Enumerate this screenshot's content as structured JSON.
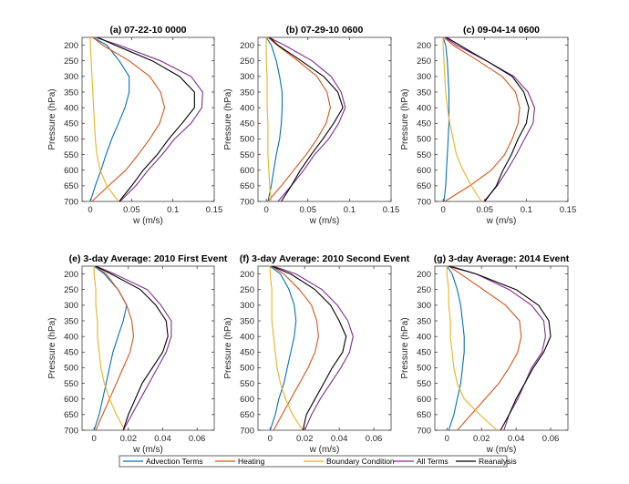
{
  "chart_data": {
    "type": "line",
    "series_names": [
      "Advection Terms",
      "Heating",
      "Boundary Condition",
      "All Terms",
      "Reanalysis"
    ],
    "colors": {
      "Advection Terms": "#0072bd",
      "Heating": "#d95319",
      "Boundary Condition": "#edb120",
      "All Terms": "#7e2f8e",
      "Reanalysis": "#000000"
    },
    "ylabel": "Pressure (hPa)",
    "xlabel": "w (m/s)",
    "y_ticks": [
      200,
      250,
      300,
      350,
      400,
      450,
      500,
      550,
      600,
      650,
      700
    ],
    "levels": [
      175,
      200,
      250,
      300,
      350,
      400,
      450,
      500,
      550,
      600,
      650,
      700
    ],
    "panels": [
      {
        "title": "(a) 07-22-10 0000",
        "xlim": [
          -0.01,
          0.15
        ],
        "x_ticks": [
          0,
          0.05,
          0.1,
          0.15
        ],
        "x_tick_labels": [
          "0",
          "0.05",
          "0.1",
          "0.15"
        ],
        "series": [
          {
            "name": "Advection Terms",
            "values": [
              0.003,
              0.02,
              0.035,
              0.047,
              0.047,
              0.042,
              0.034,
              0.026,
              0.019,
              0.013,
              0.006,
              0.0
            ]
          },
          {
            "name": "Heating",
            "values": [
              0.003,
              0.015,
              0.047,
              0.072,
              0.085,
              0.09,
              0.084,
              0.072,
              0.058,
              0.043,
              0.022,
              0.002
            ]
          },
          {
            "name": "Boundary Condition",
            "values": [
              0.0,
              0.0,
              0.001,
              0.002,
              0.003,
              0.004,
              0.005,
              0.006,
              0.008,
              0.012,
              0.02,
              0.034
            ]
          },
          {
            "name": "All Terms",
            "values": [
              0.006,
              0.035,
              0.085,
              0.122,
              0.136,
              0.135,
              0.122,
              0.102,
              0.087,
              0.07,
              0.055,
              0.036
            ]
          },
          {
            "name": "Reanalysis",
            "values": [
              0.009,
              0.03,
              0.075,
              0.108,
              0.126,
              0.126,
              0.111,
              0.095,
              0.081,
              0.064,
              0.05,
              0.035
            ]
          }
        ]
      },
      {
        "title": "(b) 07-29-10 0600",
        "xlim": [
          -0.01,
          0.15
        ],
        "x_ticks": [
          0,
          0.05,
          0.1,
          0.15
        ],
        "x_tick_labels": [
          "0",
          "0.05",
          "0.1",
          "0.15"
        ],
        "series": [
          {
            "name": "Advection Terms",
            "values": [
              0.0,
              0.006,
              0.012,
              0.016,
              0.019,
              0.019,
              0.018,
              0.016,
              0.012,
              0.009,
              0.006,
              0.002
            ]
          },
          {
            "name": "Heating",
            "values": [
              0.002,
              0.013,
              0.038,
              0.061,
              0.073,
              0.077,
              0.072,
              0.061,
              0.048,
              0.033,
              0.018,
              0.002
            ]
          },
          {
            "name": "Boundary Condition",
            "values": [
              0.0,
              0.0,
              0.0,
              0.001,
              0.001,
              0.001,
              0.002,
              0.002,
              0.002,
              0.003,
              0.004,
              0.006
            ]
          },
          {
            "name": "All Terms",
            "values": [
              0.003,
              0.022,
              0.055,
              0.078,
              0.09,
              0.095,
              0.087,
              0.075,
              0.058,
              0.045,
              0.03,
              0.014
            ]
          },
          {
            "name": "Reanalysis",
            "values": [
              0.004,
              0.014,
              0.042,
              0.069,
              0.086,
              0.092,
              0.081,
              0.068,
              0.054,
              0.041,
              0.03,
              0.018
            ]
          }
        ]
      },
      {
        "title": "(c) 09-04-14 0600",
        "xlim": [
          -0.01,
          0.15
        ],
        "x_ticks": [
          0,
          0.05,
          0.1,
          0.15
        ],
        "x_tick_labels": [
          "0",
          "0.05",
          "0.1",
          "0.15"
        ],
        "series": [
          {
            "name": "Advection Terms",
            "values": [
              0.0,
              0.003,
              0.005,
              0.006,
              0.007,
              0.007,
              0.007,
              0.006,
              0.005,
              0.004,
              0.003,
              0.001
            ]
          },
          {
            "name": "Heating",
            "values": [
              0.001,
              0.012,
              0.042,
              0.071,
              0.087,
              0.092,
              0.09,
              0.083,
              0.074,
              0.058,
              0.032,
              0.002
            ]
          },
          {
            "name": "Boundary Condition",
            "values": [
              0.0,
              0.0,
              0.001,
              0.002,
              0.003,
              0.005,
              0.008,
              0.012,
              0.016,
              0.024,
              0.034,
              0.046
            ]
          },
          {
            "name": "All Terms",
            "values": [
              0.002,
              0.016,
              0.052,
              0.085,
              0.102,
              0.11,
              0.108,
              0.098,
              0.088,
              0.077,
              0.065,
              0.049
            ]
          },
          {
            "name": "Reanalysis",
            "values": [
              0.004,
              0.02,
              0.052,
              0.083,
              0.097,
              0.103,
              0.1,
              0.09,
              0.082,
              0.072,
              0.064,
              0.05
            ]
          }
        ]
      },
      {
        "title": "(e) 3-day Average: 2010 First Event",
        "xlim": [
          -0.007,
          0.07
        ],
        "x_ticks": [
          0,
          0.02,
          0.04,
          0.06
        ],
        "x_tick_labels": [
          "0",
          "0.02",
          "0.04",
          "0.06"
        ],
        "series": [
          {
            "name": "Advection Terms",
            "values": [
              0.0,
              0.006,
              0.014,
              0.019,
              0.017,
              0.014,
              0.011,
              0.009,
              0.007,
              0.005,
              0.003,
              0.0
            ]
          },
          {
            "name": "Heating",
            "values": [
              0.001,
              0.007,
              0.014,
              0.019,
              0.022,
              0.023,
              0.021,
              0.017,
              0.013,
              0.009,
              0.005,
              0.001
            ]
          },
          {
            "name": "Boundary Condition",
            "values": [
              0.0,
              0.0,
              0.001,
              0.001,
              0.002,
              0.002,
              0.003,
              0.004,
              0.006,
              0.009,
              0.013,
              0.018
            ]
          },
          {
            "name": "All Terms",
            "values": [
              0.001,
              0.012,
              0.031,
              0.039,
              0.045,
              0.045,
              0.042,
              0.037,
              0.032,
              0.027,
              0.022,
              0.017
            ]
          },
          {
            "name": "Reanalysis",
            "values": [
              0.001,
              0.01,
              0.027,
              0.036,
              0.042,
              0.043,
              0.04,
              0.034,
              0.028,
              0.024,
              0.02,
              0.017
            ]
          }
        ]
      },
      {
        "title": "(f) 3-day Average: 2010 Second Event",
        "xlim": [
          -0.007,
          0.07
        ],
        "x_ticks": [
          0,
          0.02,
          0.04,
          0.06
        ],
        "x_tick_labels": [
          "0",
          "0.02",
          "0.04",
          "0.06"
        ],
        "series": [
          {
            "name": "Advection Terms",
            "values": [
              0.0,
              0.006,
              0.011,
              0.014,
              0.015,
              0.014,
              0.012,
              0.01,
              0.008,
              0.005,
              0.003,
              0.0
            ]
          },
          {
            "name": "Heating",
            "values": [
              0.001,
              0.008,
              0.017,
              0.024,
              0.027,
              0.028,
              0.026,
              0.022,
              0.017,
              0.012,
              0.007,
              0.002
            ]
          },
          {
            "name": "Boundary Condition",
            "values": [
              0.0,
              0.0,
              0.001,
              0.001,
              0.001,
              0.002,
              0.003,
              0.004,
              0.006,
              0.009,
              0.013,
              0.019
            ]
          },
          {
            "name": "All Terms",
            "values": [
              0.002,
              0.015,
              0.03,
              0.039,
              0.045,
              0.048,
              0.046,
              0.041,
              0.035,
              0.029,
              0.024,
              0.02
            ]
          },
          {
            "name": "Reanalysis",
            "values": [
              0.001,
              0.012,
              0.026,
              0.035,
              0.04,
              0.044,
              0.042,
              0.036,
              0.031,
              0.026,
              0.021,
              0.019
            ]
          }
        ]
      },
      {
        "title": "(g) 3-day Average: 2014 Event",
        "xlim": [
          -0.007,
          0.07
        ],
        "x_ticks": [
          0,
          0.02,
          0.04,
          0.06
        ],
        "x_tick_labels": [
          "0",
          "0.02",
          "0.04",
          "0.06"
        ],
        "series": [
          {
            "name": "Advection Terms",
            "values": [
              0.0,
              0.003,
              0.006,
              0.008,
              0.009,
              0.01,
              0.01,
              0.009,
              0.008,
              0.006,
              0.004,
              0.001
            ]
          },
          {
            "name": "Heating",
            "values": [
              0.001,
              0.008,
              0.021,
              0.034,
              0.042,
              0.043,
              0.041,
              0.036,
              0.03,
              0.022,
              0.014,
              0.006
            ]
          },
          {
            "name": "Boundary Condition",
            "values": [
              0.0,
              0.0,
              0.001,
              0.001,
              0.002,
              0.002,
              0.003,
              0.004,
              0.006,
              0.01,
              0.019,
              0.029
            ]
          },
          {
            "name": "All Terms",
            "values": [
              0.002,
              0.017,
              0.036,
              0.049,
              0.056,
              0.057,
              0.055,
              0.049,
              0.045,
              0.041,
              0.036,
              0.033
            ]
          },
          {
            "name": "Reanalysis",
            "values": [
              0.001,
              0.017,
              0.04,
              0.053,
              0.059,
              0.06,
              0.056,
              0.05,
              0.045,
              0.04,
              0.036,
              0.031
            ]
          }
        ]
      }
    ]
  }
}
